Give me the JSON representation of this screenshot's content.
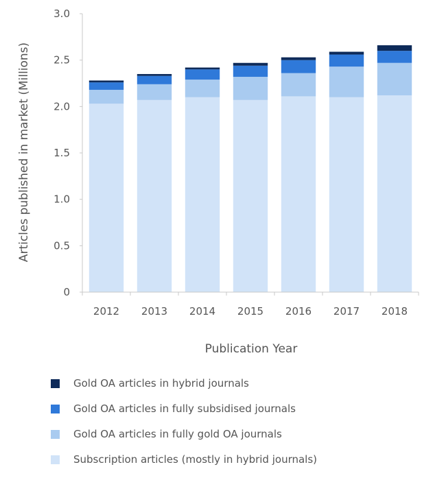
{
  "chart_data": {
    "type": "bar",
    "stacked": true,
    "categories": [
      "2012",
      "2013",
      "2014",
      "2015",
      "2016",
      "2017",
      "2018"
    ],
    "series": [
      {
        "name": "Subscription articles (mostly in hybrid journals)",
        "color": "#d1e3f8",
        "values": [
          2.03,
          2.07,
          2.1,
          2.07,
          2.11,
          2.1,
          2.12
        ]
      },
      {
        "name": "Gold OA articles in fully gold OA journals",
        "color": "#a9cbf0",
        "values": [
          0.15,
          0.17,
          0.19,
          0.25,
          0.25,
          0.33,
          0.35
        ]
      },
      {
        "name": "Gold OA articles in fully subsidised journals",
        "color": "#2f79d9",
        "values": [
          0.08,
          0.09,
          0.11,
          0.12,
          0.14,
          0.13,
          0.13
        ]
      },
      {
        "name": "Gold OA articles in hybrid journals",
        "color": "#0d2a59",
        "values": [
          0.02,
          0.02,
          0.02,
          0.03,
          0.03,
          0.03,
          0.06
        ]
      }
    ],
    "xlabel": "Publication Year",
    "ylabel": "Articles published in market (Millions)",
    "ylim": [
      0,
      3.0
    ],
    "yticks": [
      "0",
      "0.5",
      "1.0",
      "1.5",
      "2.0",
      "2.5",
      "3.0"
    ],
    "grid": false,
    "legend_position": "bottom",
    "legend_order": [
      3,
      2,
      1,
      0
    ]
  }
}
